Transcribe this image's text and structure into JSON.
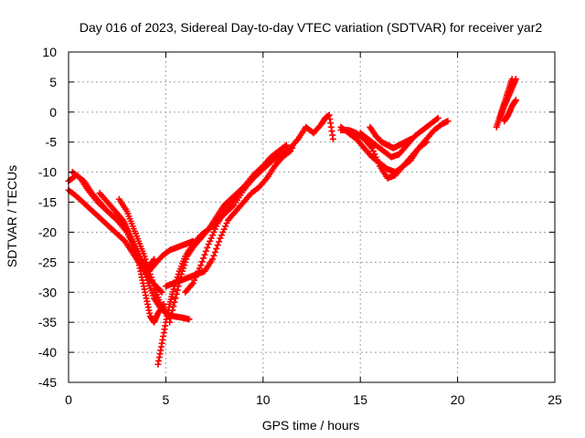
{
  "colors": {
    "series": "#ff0000",
    "grid": "#a0a0a0",
    "frame": "#000000",
    "background": "#ffffff"
  },
  "chart_data": {
    "type": "scatter",
    "title": "Day 016 of 2023, Sidereal Day-to-day VTEC variation (SDTVAR) for receiver yar2",
    "xlabel": "GPS time / hours",
    "ylabel": "SDTVAR / TECUs",
    "xlim": [
      0,
      25
    ],
    "ylim": [
      -45,
      10
    ],
    "xticks": [
      "0",
      "5",
      "10",
      "15",
      "20",
      "25"
    ],
    "yticks": [
      "10",
      "5",
      "0",
      "-5",
      "-10",
      "-15",
      "-20",
      "-25",
      "-30",
      "-35",
      "-40",
      "-45"
    ],
    "xtick_values": [
      0,
      5,
      10,
      15,
      20,
      25
    ],
    "ytick_values": [
      10,
      5,
      0,
      -5,
      -10,
      -15,
      -20,
      -25,
      -30,
      -35,
      -40,
      -45
    ],
    "grid": true,
    "marker": "plus",
    "series": [
      {
        "x": [
          0.0,
          0.4,
          0.8,
          1.2,
          1.6,
          2.0,
          2.5,
          3.0,
          3.3,
          3.6,
          3.8,
          4.0,
          4.2,
          4.4,
          4.6,
          4.9
        ],
        "y": [
          -11.5,
          -10.5,
          -11.5,
          -13.5,
          -15.0,
          -16.5,
          -18.0,
          -19.5,
          -22.0,
          -25.0,
          -28.0,
          -31.0,
          -34.0,
          -35.0,
          -33.5,
          -32.0
        ]
      },
      {
        "x": [
          0.2,
          0.6,
          1.0,
          1.5,
          2.0,
          2.5,
          3.0,
          3.4,
          3.8,
          4.1,
          4.4,
          4.7,
          5.0,
          5.4,
          5.8,
          6.2
        ],
        "y": [
          -10.0,
          -11.0,
          -13.0,
          -15.0,
          -16.5,
          -18.0,
          -20.0,
          -22.5,
          -25.5,
          -28.5,
          -31.0,
          -32.5,
          -33.5,
          -34.0,
          -34.2,
          -34.5
        ]
      },
      {
        "x": [
          0.0,
          0.4,
          0.9,
          1.4,
          1.9,
          2.4,
          2.9,
          3.3,
          3.7,
          4.1,
          4.5,
          4.8
        ],
        "y": [
          -13.0,
          -14.0,
          -15.5,
          -17.0,
          -18.5,
          -20.0,
          -21.5,
          -23.5,
          -25.5,
          -27.5,
          -29.0,
          -30.0
        ]
      },
      {
        "x": [
          1.6,
          2.0,
          2.4,
          2.8,
          3.0,
          3.2,
          3.4,
          3.6,
          3.8,
          4.0,
          4.2,
          4.4
        ],
        "y": [
          -13.5,
          -15.0,
          -16.5,
          -18.0,
          -19.5,
          -21.0,
          -22.5,
          -24.0,
          -25.0,
          -26.0,
          -25.5,
          -24.5
        ]
      },
      {
        "x": [
          2.6,
          3.0,
          3.3,
          3.6,
          3.9,
          4.2,
          4.5,
          4.8,
          5.1
        ],
        "y": [
          -14.5,
          -16.5,
          -19.0,
          -21.5,
          -24.0,
          -27.0,
          -30.0,
          -32.5,
          -33.5
        ]
      },
      {
        "x": [
          4.0,
          4.4,
          4.8,
          5.2,
          5.6,
          6.0,
          6.4
        ],
        "y": [
          -27.0,
          -25.5,
          -24.0,
          -23.0,
          -22.5,
          -22.0,
          -21.5
        ]
      },
      {
        "x": [
          4.6,
          4.8,
          5.0,
          5.2,
          5.4,
          5.7,
          6.0,
          6.4,
          6.8,
          7.2,
          7.6,
          8.0,
          8.5,
          9.0,
          9.5,
          10.0,
          10.5,
          11.0,
          11.5
        ],
        "y": [
          -42.0,
          -38.5,
          -35.0,
          -32.0,
          -29.5,
          -26.5,
          -24.0,
          -22.0,
          -20.5,
          -19.5,
          -18.5,
          -17.0,
          -15.5,
          -13.0,
          -11.0,
          -9.0,
          -7.5,
          -6.5,
          -6.0
        ]
      },
      {
        "x": [
          5.2,
          5.5,
          5.8,
          6.1,
          6.4,
          6.8,
          7.2,
          7.6,
          8.0,
          8.5,
          9.0,
          9.5,
          10.0,
          10.5,
          11.0,
          11.4
        ],
        "y": [
          -35.0,
          -31.0,
          -27.0,
          -24.0,
          -22.5,
          -21.0,
          -19.5,
          -17.5,
          -15.5,
          -14.0,
          -12.5,
          -11.0,
          -9.5,
          -8.0,
          -7.0,
          -6.5
        ]
      },
      {
        "x": [
          5.0,
          5.4,
          5.8,
          6.2,
          6.6,
          7.0,
          7.4,
          7.8,
          8.2,
          8.6,
          9.0,
          9.4,
          9.8,
          10.2,
          10.6,
          11.0,
          11.4
        ],
        "y": [
          -29.0,
          -28.5,
          -28.0,
          -27.5,
          -27.0,
          -26.5,
          -24.5,
          -21.0,
          -18.0,
          -16.5,
          -15.0,
          -13.5,
          -12.5,
          -11.0,
          -9.0,
          -7.5,
          -6.5
        ]
      },
      {
        "x": [
          6.0,
          6.4,
          6.8,
          7.2,
          7.6,
          8.0,
          8.5,
          9.0,
          9.5,
          10.0,
          10.4,
          10.8,
          11.2
        ],
        "y": [
          -30.0,
          -28.5,
          -25.5,
          -22.0,
          -19.0,
          -16.5,
          -14.5,
          -12.5,
          -10.5,
          -9.0,
          -7.5,
          -6.5,
          -5.5
        ]
      },
      {
        "x": [
          11.0,
          11.4,
          11.8,
          12.2,
          12.6,
          13.0,
          13.2,
          13.4,
          13.6
        ],
        "y": [
          -7.5,
          -6.0,
          -4.5,
          -2.5,
          -3.5,
          -2.0,
          -1.0,
          -0.5,
          -4.5
        ]
      },
      {
        "x": [
          14.0,
          14.4,
          14.8,
          15.2,
          15.6,
          16.0,
          16.4,
          16.8,
          17.2,
          17.6,
          18.0,
          18.4,
          18.8,
          19.2,
          19.5
        ],
        "y": [
          -2.5,
          -3.5,
          -4.5,
          -6.0,
          -7.5,
          -8.5,
          -9.5,
          -10.0,
          -9.0,
          -8.0,
          -6.0,
          -4.5,
          -3.0,
          -2.0,
          -1.5
        ]
      },
      {
        "x": [
          14.0,
          14.4,
          14.8,
          15.2,
          15.6,
          16.0,
          16.4,
          16.8,
          17.2,
          17.6,
          18.0,
          18.4
        ],
        "y": [
          -3.0,
          -3.0,
          -3.5,
          -4.5,
          -6.0,
          -9.0,
          -11.0,
          -10.5,
          -9.0,
          -7.5,
          -6.0,
          -5.0
        ]
      },
      {
        "x": [
          15.0,
          15.4,
          15.8,
          16.2,
          16.6,
          17.0,
          17.4,
          17.8,
          18.2,
          18.6,
          19.0
        ],
        "y": [
          -3.5,
          -4.5,
          -5.5,
          -6.5,
          -7.5,
          -7.0,
          -5.5,
          -4.0,
          -3.0,
          -2.0,
          -1.0
        ]
      },
      {
        "x": [
          15.5,
          15.8,
          16.1,
          16.4,
          16.7,
          17.0,
          17.3,
          17.6
        ],
        "y": [
          -2.5,
          -4.0,
          -5.0,
          -5.5,
          -6.0,
          -5.5,
          -5.0,
          -4.5
        ]
      },
      {
        "x": [
          22.0,
          22.2,
          22.4,
          22.6,
          22.8
        ],
        "y": [
          -2.5,
          -0.5,
          1.5,
          3.5,
          5.5
        ]
      },
      {
        "x": [
          22.2,
          22.4,
          22.6,
          22.8,
          23.0
        ],
        "y": [
          -1.0,
          1.0,
          2.5,
          4.0,
          5.5
        ]
      },
      {
        "x": [
          22.4,
          22.6,
          22.8,
          23.0
        ],
        "y": [
          -1.5,
          -0.5,
          1.0,
          2.0
        ]
      }
    ]
  }
}
